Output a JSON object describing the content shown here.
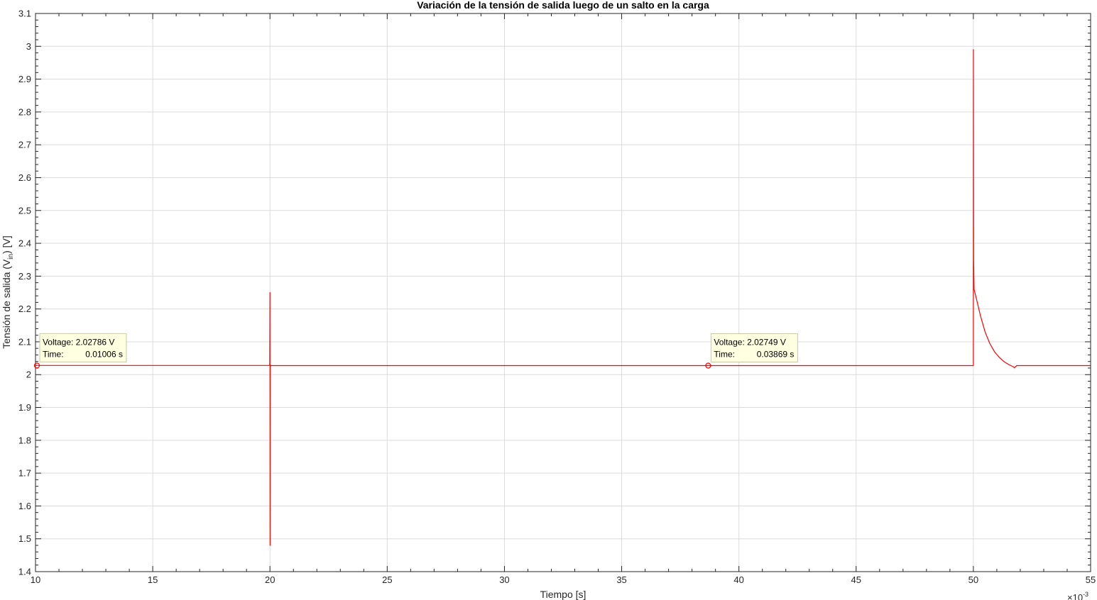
{
  "chart_data": {
    "type": "line",
    "title": "Variación de la tensión de salida luego de un salto en la carga",
    "xlabel": "Tiempo [s]",
    "ylabel_main": "Tensión de salida (V",
    "ylabel_sub": "in",
    "ylabel_end": ") [V]",
    "x_exponent_base": "×10",
    "x_exponent_power": "-3",
    "xlim": [
      10,
      55
    ],
    "ylim": [
      1.4,
      3.1
    ],
    "x_ticks": [
      10,
      15,
      20,
      25,
      30,
      35,
      40,
      45,
      50,
      55
    ],
    "y_ticks": [
      1.4,
      1.5,
      1.6,
      1.7,
      1.8,
      1.9,
      2,
      2.1,
      2.2,
      2.3,
      2.4,
      2.5,
      2.6,
      2.7,
      2.8,
      2.9,
      3,
      3.1
    ],
    "x_tick_labels": [
      "10",
      "15",
      "20",
      "25",
      "30",
      "35",
      "40",
      "45",
      "50",
      "55"
    ],
    "y_tick_labels": [
      "1.4",
      "1.5",
      "1.6",
      "1.7",
      "1.8",
      "1.9",
      "2",
      "2.1",
      "2.2",
      "2.3",
      "2.4",
      "2.5",
      "2.6",
      "2.7",
      "2.8",
      "2.9",
      "3",
      "3.1"
    ],
    "grid": true,
    "series": [
      {
        "color": "#ff0000",
        "x": [
          10,
          19.99,
          20.0,
          20.005,
          20.01,
          20.02,
          20.03,
          50.0,
          50.002,
          50.01,
          50.03,
          50.1,
          50.3,
          50.5,
          50.7,
          50.9,
          51.1,
          51.3,
          51.5,
          51.7,
          51.75,
          51.85,
          55
        ],
        "y": [
          2.0279,
          2.0279,
          2.25,
          1.48,
          2.03,
          2.026,
          2.0275,
          2.0275,
          2.99,
          2.35,
          2.26,
          2.24,
          2.18,
          2.13,
          2.095,
          2.07,
          2.053,
          2.04,
          2.031,
          2.024,
          2.021,
          2.0275,
          2.0275
        ]
      }
    ],
    "datatips": [
      {
        "x": 10.06,
        "y": 2.02786,
        "line1": "Voltage: 2.02786 V",
        "line2_label": "Time:",
        "line2_value": "0.01006 s"
      },
      {
        "x": 38.69,
        "y": 2.02749,
        "line1": "Voltage: 2.02749 V",
        "line2_label": "Time:",
        "line2_value": "0.03869 s"
      }
    ]
  }
}
